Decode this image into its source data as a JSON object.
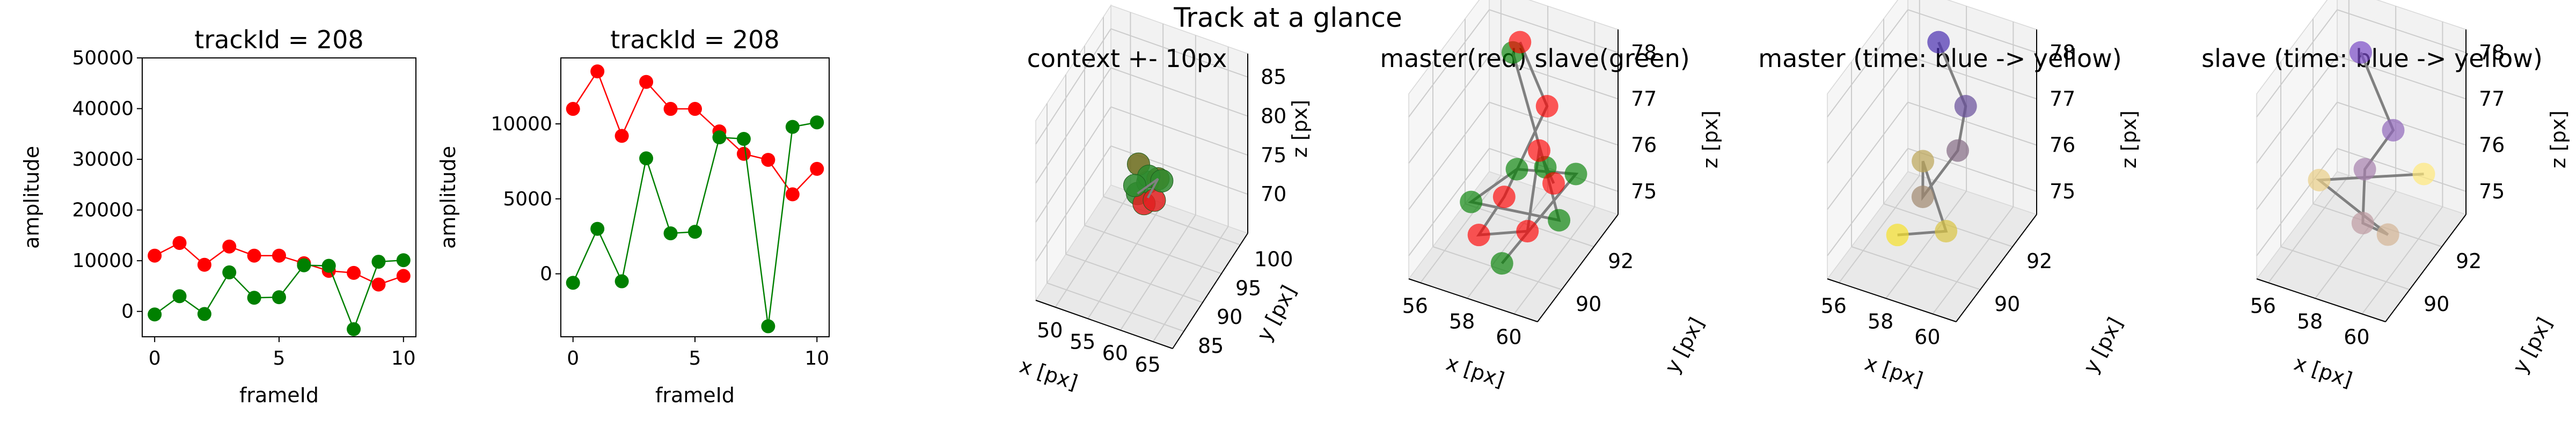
{
  "suptitle": "Track at a glance",
  "colors": {
    "master": "#ff0000",
    "slave": "#008000",
    "line": "#808080",
    "pane": "#f0f0f0",
    "grid": "#cccccc",
    "time_start": "#440154",
    "time_end": "#fde725",
    "slave_time_start": "#0d0887",
    "slave_time_end": "#f0f921"
  },
  "chart_data": [
    {
      "type": "line",
      "title": "trackId = 208",
      "xlabel": "frameId",
      "ylabel": "amplitude",
      "xlim": [
        -0.5,
        10.5
      ],
      "ylim": [
        -5000,
        50000
      ],
      "xticks": [
        0,
        5,
        10
      ],
      "yticks": [
        0,
        10000,
        20000,
        30000,
        40000,
        50000
      ],
      "x": [
        0,
        1,
        2,
        3,
        4,
        5,
        6,
        7,
        8,
        9,
        10
      ],
      "series": [
        {
          "values": [
            11000,
            13500,
            9200,
            12800,
            11000,
            11000,
            9500,
            8000,
            7600,
            5300,
            7000
          ]
        },
        {
          "values": [
            -600,
            3000,
            -500,
            7700,
            2700,
            2800,
            9100,
            9000,
            -3500,
            9800,
            10100
          ]
        }
      ]
    },
    {
      "type": "line",
      "title": "trackId = 208",
      "xlabel": "frameId",
      "ylabel": "amplitude",
      "xlim": [
        -0.5,
        10.5
      ],
      "ylim": [
        -4200,
        14400
      ],
      "xticks": [
        0,
        5,
        10
      ],
      "yticks": [
        0,
        5000,
        10000
      ],
      "x": [
        0,
        1,
        2,
        3,
        4,
        5,
        6,
        7,
        8,
        9,
        10
      ],
      "series": [
        {
          "values": [
            11000,
            13500,
            9200,
            12800,
            11000,
            11000,
            9500,
            8000,
            7600,
            5300,
            7000
          ]
        },
        {
          "values": [
            -600,
            3000,
            -500,
            7700,
            2700,
            2800,
            9100,
            9000,
            -3500,
            9800,
            10100
          ]
        }
      ]
    },
    {
      "type": "scatter",
      "title": "context +- 10px",
      "xlabel": "x [px]",
      "ylabel": "y [px]",
      "zlabel": "z [px]",
      "xlim": [
        47,
        68
      ],
      "ylim": [
        82,
        102
      ],
      "zlim": [
        65,
        88
      ],
      "xticks": [
        50,
        55,
        60,
        65
      ],
      "yticks": [
        85,
        90,
        95,
        100
      ],
      "zticks": [
        70,
        75,
        80,
        85
      ],
      "points": [
        {
          "x": 58,
          "y": 90,
          "z": 76,
          "group": "green"
        },
        {
          "x": 59,
          "y": 91,
          "z": 77,
          "group": "green"
        },
        {
          "x": 57,
          "y": 92,
          "z": 78,
          "group": "olive"
        },
        {
          "x": 60,
          "y": 92,
          "z": 77,
          "group": "olive"
        },
        {
          "x": 58,
          "y": 93,
          "z": 76,
          "group": "green"
        },
        {
          "x": 59,
          "y": 90,
          "z": 75,
          "group": "red"
        },
        {
          "x": 60,
          "y": 91,
          "z": 75,
          "group": "red"
        },
        {
          "x": 57,
          "y": 91,
          "z": 76,
          "group": "green"
        },
        {
          "x": 60,
          "y": 93,
          "z": 76,
          "group": "green"
        }
      ]
    },
    {
      "type": "scatter",
      "title": "master(red) slave(green)",
      "xlabel": "x [px]",
      "ylabel": "y [px]",
      "zlabel": "z [px]",
      "xlim": [
        55.5,
        61
      ],
      "ylim": [
        88.5,
        93.5
      ],
      "zlim": [
        74.5,
        78.5
      ],
      "xticks": [
        56,
        58,
        60
      ],
      "yticks": [
        90,
        92
      ],
      "zticks": [
        75,
        76,
        77,
        78
      ],
      "master": [
        {
          "x": 57.5,
          "y": 92.5,
          "z": 78.1
        },
        {
          "x": 59.0,
          "y": 92.0,
          "z": 77.2
        },
        {
          "x": 58.2,
          "y": 90.5,
          "z": 75.8
        },
        {
          "x": 57.6,
          "y": 89.8,
          "z": 75.2
        },
        {
          "x": 59.4,
          "y": 90.2,
          "z": 75.4
        },
        {
          "x": 58.8,
          "y": 91.8,
          "z": 76.3
        },
        {
          "x": 59.9,
          "y": 91.1,
          "z": 76.1
        }
      ],
      "slave": [
        {
          "x": 57.4,
          "y": 92.2,
          "z": 78.0
        },
        {
          "x": 59.2,
          "y": 91.6,
          "z": 76.1
        },
        {
          "x": 60.2,
          "y": 91.0,
          "z": 75.4
        },
        {
          "x": 57.2,
          "y": 89.9,
          "z": 75.8
        },
        {
          "x": 58.4,
          "y": 91.0,
          "z": 76.2
        },
        {
          "x": 60.3,
          "y": 91.9,
          "z": 76.0
        },
        {
          "x": 59.0,
          "y": 89.2,
          "z": 75.1
        }
      ]
    },
    {
      "type": "scatter",
      "title": "master (time: blue -> yellow)",
      "xlabel": "x [px]",
      "ylabel": "y [px]",
      "zlabel": "z [px]",
      "xlim": [
        55.5,
        61
      ],
      "ylim": [
        88.5,
        93.5
      ],
      "zlim": [
        74.5,
        78.5
      ],
      "xticks": [
        56,
        58,
        60
      ],
      "yticks": [
        90,
        92
      ],
      "zticks": [
        75,
        76,
        77,
        78
      ],
      "points": [
        {
          "x": 57.5,
          "y": 92.5,
          "z": 78.1
        },
        {
          "x": 59.0,
          "y": 92.0,
          "z": 77.2
        },
        {
          "x": 58.8,
          "y": 91.8,
          "z": 76.3
        },
        {
          "x": 58.2,
          "y": 90.5,
          "z": 75.8
        },
        {
          "x": 58.0,
          "y": 90.8,
          "z": 76.4
        },
        {
          "x": 59.4,
          "y": 90.2,
          "z": 75.4
        },
        {
          "x": 57.6,
          "y": 89.8,
          "z": 75.2
        }
      ]
    },
    {
      "type": "scatter",
      "title": "slave (time: blue -> yellow)",
      "xlabel": "x [px]",
      "ylabel": "y [px]",
      "zlabel": "z [px]",
      "xlim": [
        55.5,
        61
      ],
      "ylim": [
        88.5,
        93.5
      ],
      "zlim": [
        74.5,
        78.5
      ],
      "xticks": [
        56,
        58,
        60
      ],
      "yticks": [
        90,
        92
      ],
      "zticks": [
        75,
        76,
        77,
        78
      ],
      "points": [
        {
          "x": 57.4,
          "y": 92.2,
          "z": 78.0
        },
        {
          "x": 59.2,
          "y": 91.6,
          "z": 76.9
        },
        {
          "x": 58.4,
          "y": 91.0,
          "z": 76.2
        },
        {
          "x": 59.0,
          "y": 90.0,
          "z": 75.6
        },
        {
          "x": 59.8,
          "y": 90.4,
          "z": 75.3
        },
        {
          "x": 57.0,
          "y": 90.2,
          "z": 76.1
        },
        {
          "x": 60.3,
          "y": 91.9,
          "z": 76.0
        }
      ]
    }
  ]
}
